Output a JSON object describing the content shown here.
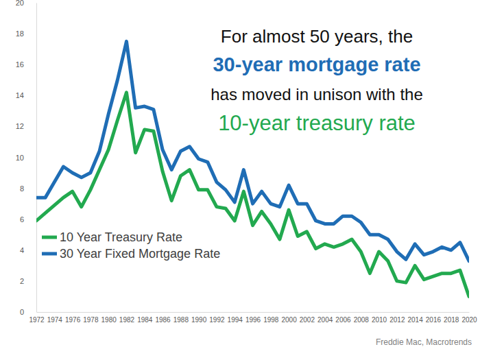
{
  "chart_data": {
    "type": "line",
    "title": [
      "For almost 50 years, the",
      "30-year mortgage rate",
      "has moved in unison with the",
      "10-year treasury rate"
    ],
    "annotations": [
      "Freddie Mac, Macrotrends"
    ],
    "x": [
      1972,
      1973,
      1974,
      1975,
      1976,
      1977,
      1978,
      1979,
      1980,
      1981,
      1982,
      1983,
      1984,
      1985,
      1986,
      1987,
      1988,
      1989,
      1990,
      1991,
      1992,
      1993,
      1994,
      1995,
      1996,
      1997,
      1998,
      1999,
      2000,
      2001,
      2002,
      2003,
      2004,
      2005,
      2006,
      2007,
      2008,
      2009,
      2010,
      2011,
      2012,
      2013,
      2014,
      2015,
      2016,
      2017,
      2018,
      2019,
      2020
    ],
    "series": [
      {
        "name": "10 Year Treasury Rate",
        "color": "#22a94f",
        "values": [
          5.9,
          6.4,
          6.9,
          7.4,
          7.8,
          6.8,
          7.9,
          9.2,
          10.5,
          12.4,
          14.2,
          10.3,
          11.8,
          11.7,
          9.1,
          7.2,
          8.8,
          9.2,
          7.9,
          7.9,
          6.8,
          6.7,
          5.9,
          7.8,
          5.6,
          6.5,
          5.7,
          4.7,
          6.6,
          4.9,
          5.2,
          4.1,
          4.4,
          4.2,
          4.4,
          4.7,
          3.9,
          2.5,
          3.9,
          3.3,
          2.0,
          1.9,
          3.0,
          2.1,
          2.3,
          2.5,
          2.5,
          2.7,
          1.0
        ]
      },
      {
        "name": "30 Year Fixed Mortgage Rate",
        "color": "#1f6db5",
        "values": [
          7.4,
          7.4,
          8.4,
          9.4,
          9.0,
          8.7,
          9.0,
          10.4,
          12.8,
          15.0,
          17.5,
          13.2,
          13.3,
          13.1,
          10.5,
          9.2,
          10.4,
          10.7,
          9.9,
          9.7,
          8.4,
          7.9,
          7.1,
          9.2,
          7.0,
          7.8,
          7.0,
          6.8,
          8.2,
          7.0,
          7.0,
          5.9,
          5.7,
          5.7,
          6.2,
          6.2,
          5.8,
          5.0,
          5.0,
          4.7,
          3.9,
          3.4,
          4.4,
          3.7,
          3.9,
          4.2,
          4.0,
          4.5,
          3.3
        ]
      }
    ],
    "xlim": [
      1972,
      2020
    ],
    "xticks": [
      1972,
      1974,
      1976,
      1978,
      1980,
      1982,
      1984,
      1986,
      1988,
      1990,
      1992,
      1994,
      1996,
      1998,
      2000,
      2002,
      2004,
      2006,
      2008,
      2010,
      2012,
      2014,
      2016,
      2018,
      2020
    ],
    "ylim": [
      0,
      20
    ],
    "yticks": [
      0,
      2,
      4,
      6,
      8,
      10,
      12,
      14,
      16,
      18,
      20
    ],
    "grid": false,
    "legend": "bottom-left"
  }
}
